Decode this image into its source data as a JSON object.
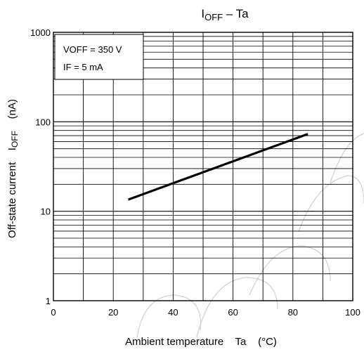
{
  "chart_data": {
    "type": "line",
    "title": {
      "main": "I",
      "sub": "OFF",
      "rest": " – Ta"
    },
    "xlabel": "Ambient temperature    Ta    (°C)",
    "ylabel": {
      "pre": "Off-state current    I",
      "sub": "OFF",
      "post": "    (nA)"
    },
    "xscale": "linear",
    "yscale": "log",
    "xlim": [
      0,
      100
    ],
    "ylim": [
      1,
      1000
    ],
    "xticks": [
      {
        "value": 0,
        "label": "0"
      },
      {
        "value": 20,
        "label": "20"
      },
      {
        "value": 40,
        "label": "40"
      },
      {
        "value": 60,
        "label": "60"
      },
      {
        "value": 80,
        "label": "80"
      },
      {
        "value": 100,
        "label": "100"
      }
    ],
    "yticks": [
      {
        "value": 1,
        "label": "1"
      },
      {
        "value": 10,
        "label": "10"
      },
      {
        "value": 100,
        "label": "100"
      },
      {
        "value": 1000,
        "label": "1000"
      }
    ],
    "grid": true,
    "conditions": [
      "VOFF = 350 V",
      "IF = 5 mA"
    ],
    "series": [
      {
        "x": [
          25,
          85
        ],
        "y": [
          13.5,
          73
        ]
      }
    ]
  }
}
